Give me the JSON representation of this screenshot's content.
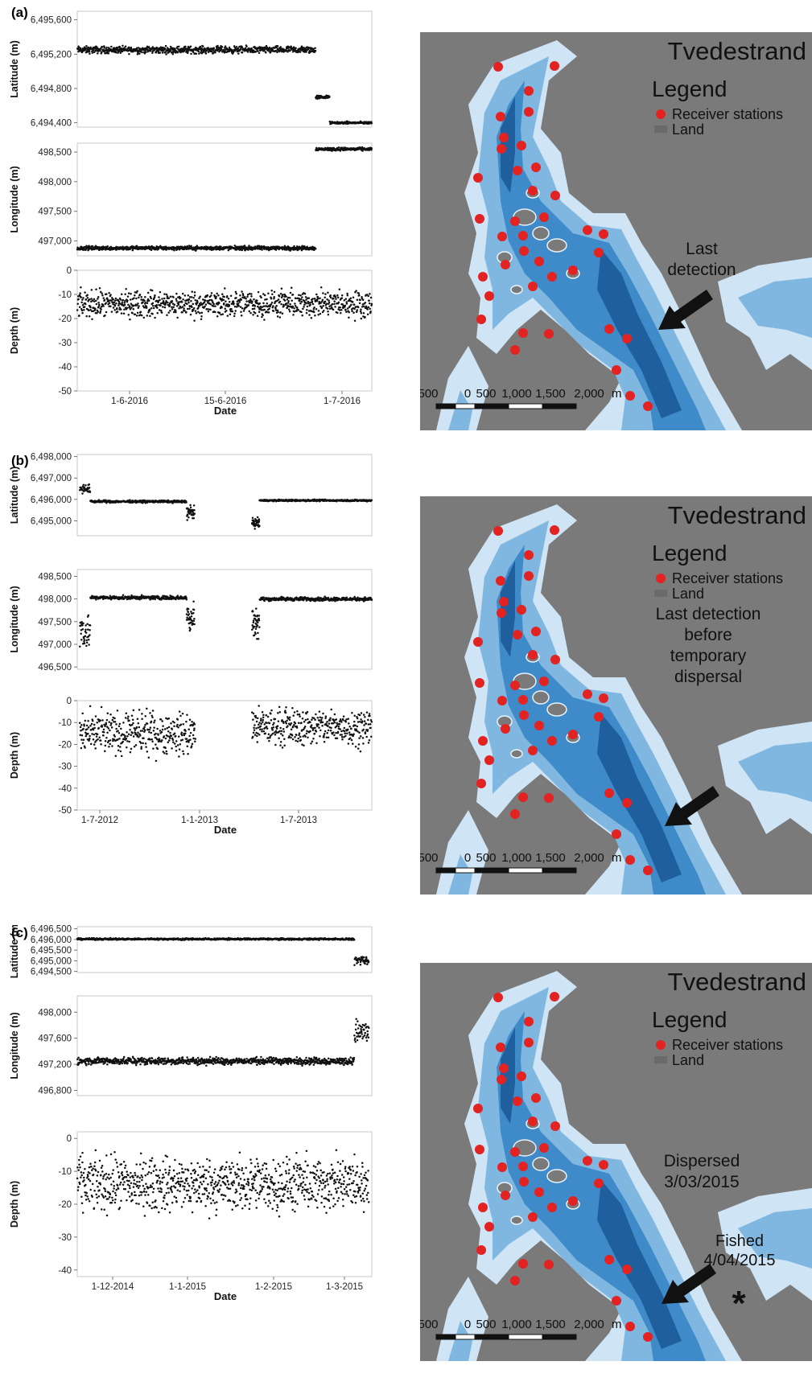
{
  "panels": [
    {
      "label": "(a)",
      "xlabel": "Date",
      "xticks": [
        "1-6-2016",
        "15-6-2016",
        "1-7-2016"
      ],
      "map": {
        "title": "Tvedestrand",
        "legend_title": "Legend",
        "legend_items": [
          "Receiver stations",
          "Land"
        ],
        "annotation": [
          "Last",
          "detection"
        ],
        "scale_labels": [
          "500",
          "0",
          "500",
          "1,000",
          "1,500",
          "2,000",
          "m"
        ]
      }
    },
    {
      "label": "(b)",
      "xlabel": "Date",
      "xticks": [
        "1-7-2012",
        "1-1-2013",
        "1-7-2013"
      ],
      "map": {
        "title": "Tvedestrand",
        "legend_title": "Legend",
        "legend_items": [
          "Receiver stations",
          "Land"
        ],
        "annotation": [
          "Last detection",
          "before",
          "temporary",
          "dispersal"
        ],
        "scale_labels": [
          "500",
          "0",
          "500",
          "1,000",
          "1,500",
          "2,000",
          "m"
        ]
      }
    },
    {
      "label": "(c)",
      "xlabel": "Date",
      "xticks": [
        "1-12-2014",
        "1-1-2015",
        "1-2-2015",
        "1-3-2015"
      ],
      "map": {
        "title": "Tvedestrand",
        "legend_title": "Legend",
        "legend_items": [
          "Receiver stations",
          "Land"
        ],
        "annotation": [
          "Dispersed",
          "3/03/2015"
        ],
        "annotation2": [
          "Fished",
          "4/04/2015"
        ],
        "star": "*",
        "scale_labels": [
          "500",
          "0",
          "500",
          "1,000",
          "1,500",
          "2,000",
          "m"
        ]
      }
    }
  ],
  "chart_data": [
    {
      "type": "scatter",
      "panel": "(a)",
      "ylabel": "Latitude (m)",
      "yticks": [
        "6,495,600",
        "6,495,200",
        "6,494,800",
        "6,494,400"
      ],
      "ylim": [
        6494350,
        6495700
      ],
      "x_range": [
        "2016-05-21",
        "2016-07-02"
      ],
      "segments": [
        {
          "x": [
            "2016-05-21",
            "2016-06-24"
          ],
          "y": 6495250,
          "spread": 60
        },
        {
          "x": [
            "2016-06-24",
            "2016-06-26"
          ],
          "y": 6494700,
          "spread": 30
        },
        {
          "x": [
            "2016-06-26",
            "2016-07-02"
          ],
          "y": 6494400,
          "spread": 20
        }
      ]
    },
    {
      "type": "scatter",
      "panel": "(a)",
      "ylabel": "Longitude (m)",
      "yticks": [
        "498,500",
        "498,000",
        "497,500",
        "497,000"
      ],
      "ylim": [
        496750,
        498650
      ],
      "x_range": [
        "2016-05-21",
        "2016-07-02"
      ],
      "segments": [
        {
          "x": [
            "2016-05-21",
            "2016-06-24"
          ],
          "y": 496880,
          "spread": 50
        },
        {
          "x": [
            "2016-06-24",
            "2016-07-02"
          ],
          "y": 498550,
          "spread": 40
        }
      ]
    },
    {
      "type": "scatter",
      "panel": "(a)",
      "ylabel": "Depth (m)",
      "yticks": [
        "0",
        "-10",
        "-20",
        "-30",
        "-40",
        "-50"
      ],
      "ylim": [
        -50,
        0
      ],
      "x_range": [
        "2016-05-21",
        "2016-07-02"
      ],
      "segments": [
        {
          "x": [
            "2016-05-21",
            "2016-07-02"
          ],
          "y": -14,
          "spread": 8
        }
      ]
    },
    {
      "type": "scatter",
      "panel": "(b)",
      "ylabel": "Latitude (m)",
      "yticks": [
        "6,498,000",
        "6,497,000",
        "6,496,000",
        "6,495,000"
      ],
      "ylim": [
        6494300,
        6498100
      ],
      "x_range": [
        "2012-05-20",
        "2013-12-31"
      ],
      "segments": [
        {
          "x": [
            "2012-05-25",
            "2012-06-15"
          ],
          "y": 6496500,
          "spread": 300
        },
        {
          "x": [
            "2012-06-15",
            "2012-12-25"
          ],
          "y": 6495900,
          "spread": 80
        },
        {
          "x": [
            "2012-12-25",
            "2013-01-10"
          ],
          "y": 6495400,
          "spread": 500
        },
        {
          "x": [
            "2013-05-05",
            "2013-05-20"
          ],
          "y": 6494900,
          "spread": 300
        },
        {
          "x": [
            "2013-05-20",
            "2013-12-31"
          ],
          "y": 6495950,
          "spread": 60
        }
      ]
    },
    {
      "type": "scatter",
      "panel": "(b)",
      "ylabel": "Longitude (m)",
      "yticks": [
        "498,500",
        "498,000",
        "497,500",
        "497,000",
        "496,500"
      ],
      "ylim": [
        496450,
        498650
      ],
      "x_range": [
        "2012-05-20",
        "2013-12-31"
      ],
      "segments": [
        {
          "x": [
            "2012-05-25",
            "2012-06-15"
          ],
          "y": 497300,
          "spread": 600
        },
        {
          "x": [
            "2012-06-15",
            "2012-12-25"
          ],
          "y": 498030,
          "spread": 60
        },
        {
          "x": [
            "2012-12-25",
            "2013-01-10"
          ],
          "y": 497600,
          "spread": 500
        },
        {
          "x": [
            "2013-05-05",
            "2013-05-20"
          ],
          "y": 497500,
          "spread": 500
        },
        {
          "x": [
            "2013-05-20",
            "2013-12-31"
          ],
          "y": 498000,
          "spread": 60
        }
      ]
    },
    {
      "type": "scatter",
      "panel": "(b)",
      "ylabel": "Depth (m)",
      "yticks": [
        "0",
        "-10",
        "-20",
        "-30",
        "-40",
        "-50"
      ],
      "ylim": [
        -50,
        0
      ],
      "x_range": [
        "2012-05-20",
        "2013-12-31"
      ],
      "segments": [
        {
          "x": [
            "2012-05-25",
            "2013-01-12"
          ],
          "y": -15,
          "spread": 14
        },
        {
          "x": [
            "2013-05-05",
            "2013-12-31"
          ],
          "y": -12,
          "spread": 12
        }
      ]
    },
    {
      "type": "scatter",
      "panel": "(c)",
      "ylabel": "Latitude (m)",
      "yticks": [
        "6,496,500",
        "6,496,000",
        "6,495,500",
        "6,495,000",
        "6,494,500"
      ],
      "ylim": [
        6494450,
        6496600
      ],
      "x_range": [
        "2014-11-24",
        "2015-03-05"
      ],
      "segments": [
        {
          "x": [
            "2014-11-24",
            "2015-02-27"
          ],
          "y": 6496020,
          "spread": 60
        },
        {
          "x": [
            "2015-02-27",
            "2015-03-04"
          ],
          "y": 6495000,
          "spread": 300
        }
      ]
    },
    {
      "type": "scatter",
      "panel": "(c)",
      "ylabel": "Longitude (m)",
      "yticks": [
        "498,000",
        "497,600",
        "497,200",
        "496,800"
      ],
      "ylim": [
        496720,
        498250
      ],
      "x_range": [
        "2014-11-24",
        "2015-03-05"
      ],
      "segments": [
        {
          "x": [
            "2014-11-24",
            "2015-02-27"
          ],
          "y": 497250,
          "spread": 80
        },
        {
          "x": [
            "2015-02-27",
            "2015-03-04"
          ],
          "y": 497700,
          "spread": 300
        }
      ]
    },
    {
      "type": "scatter",
      "panel": "(c)",
      "ylabel": "Depth (m)",
      "yticks": [
        "0",
        "-10",
        "-20",
        "-30",
        "-40"
      ],
      "ylim": [
        -42,
        2
      ],
      "x_range": [
        "2014-11-24",
        "2015-03-05"
      ],
      "segments": [
        {
          "x": [
            "2014-11-24",
            "2015-03-04"
          ],
          "y": -14,
          "spread": 12
        }
      ]
    }
  ]
}
